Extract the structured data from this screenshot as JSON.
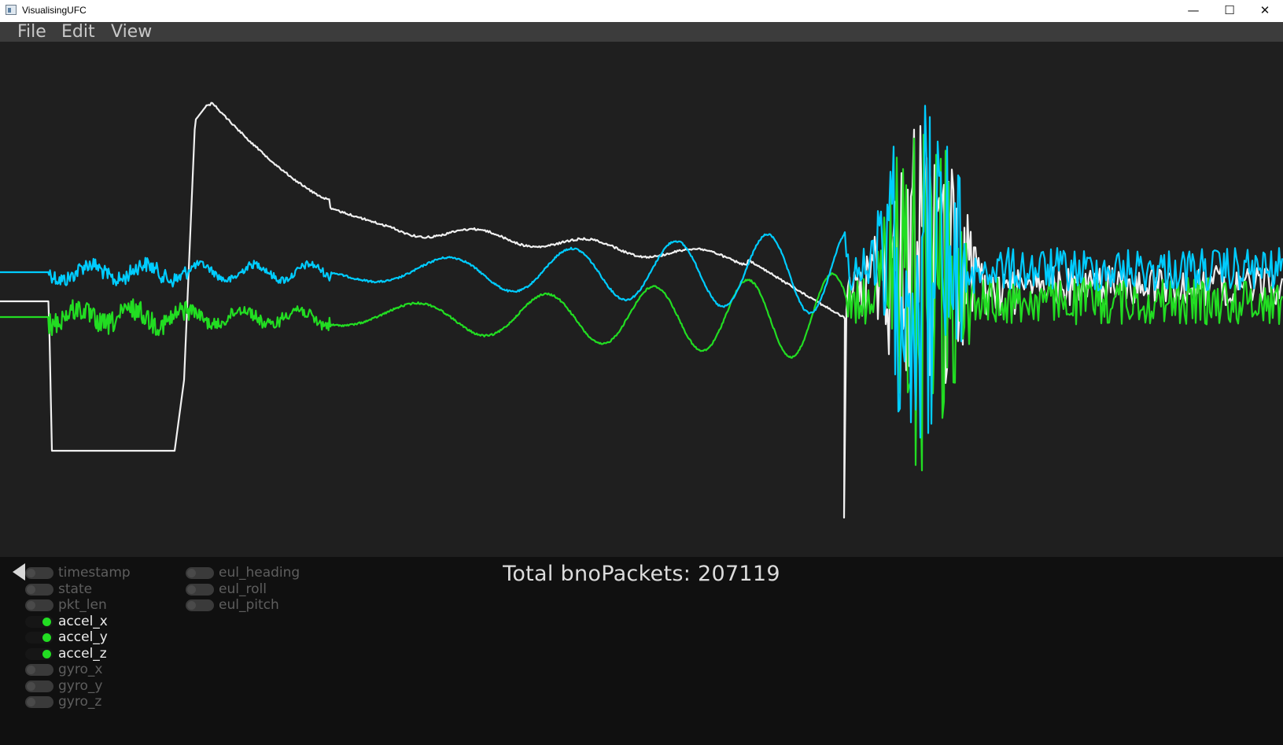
{
  "window": {
    "title": "VisualisingUFC",
    "minimize_glyph": "—",
    "maximize_glyph": "☐",
    "close_glyph": "✕"
  },
  "menu": [
    "File",
    "Edit",
    "View"
  ],
  "plot": {
    "background": "#1f1f1f",
    "series": [
      {
        "color": "#f0f0f0",
        "icon": "white-trace"
      },
      {
        "color": "#22dd22",
        "icon": "green-trace"
      },
      {
        "color": "#00ccff",
        "icon": "cyan-trace"
      }
    ]
  },
  "status": {
    "total_text": "Total bnoPackets:  207119"
  },
  "toggles": {
    "col1": [
      {
        "label": "timestamp",
        "on": false
      },
      {
        "label": "state",
        "on": false
      },
      {
        "label": "pkt_len",
        "on": false
      },
      {
        "label": "accel_x",
        "on": true
      },
      {
        "label": "accel_y",
        "on": true
      },
      {
        "label": "accel_z",
        "on": true
      },
      {
        "label": "gyro_x",
        "on": false
      },
      {
        "label": "gyro_y",
        "on": false
      },
      {
        "label": "gyro_z",
        "on": false
      }
    ],
    "col2": [
      {
        "label": "eul_heading",
        "on": false
      },
      {
        "label": "eul_roll",
        "on": false
      },
      {
        "label": "eul_pitch",
        "on": false
      }
    ]
  },
  "colors": {
    "toggle_on": "#22dd22",
    "toggle_off": "#3a3a3a",
    "menubar": "#3c3c3c",
    "panel": "#101010"
  }
}
